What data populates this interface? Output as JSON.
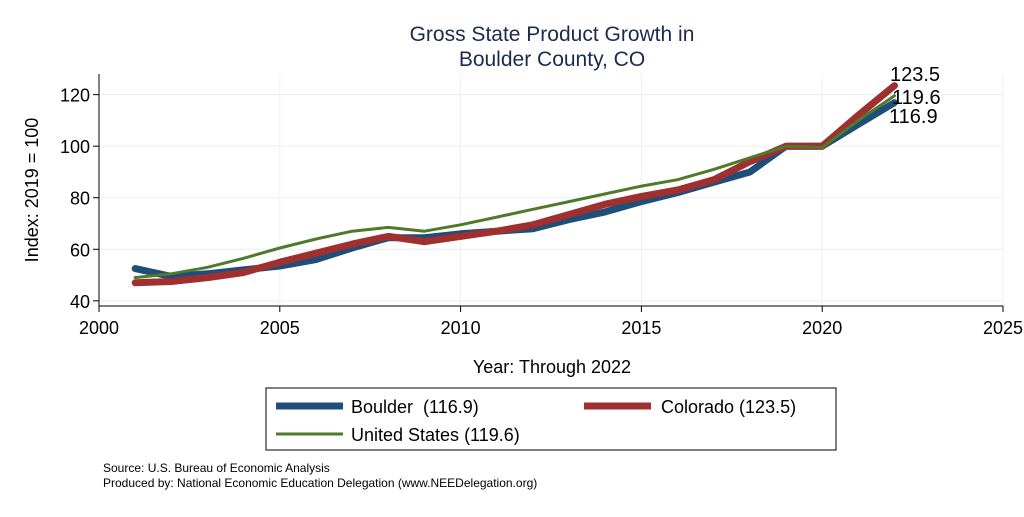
{
  "chart_data": {
    "type": "line",
    "title_lines": [
      "Gross State Product Growth in",
      "Boulder County, CO"
    ],
    "xlabel": "Year: Through 2022",
    "ylabel": "Index: 2019 = 100",
    "xlim": [
      2000,
      2025
    ],
    "ylim": [
      38,
      128
    ],
    "xticks": [
      2000,
      2005,
      2010,
      2015,
      2020,
      2025
    ],
    "yticks": [
      40,
      60,
      80,
      100,
      120
    ],
    "grid": true,
    "x": [
      2001,
      2002,
      2003,
      2004,
      2005,
      2006,
      2007,
      2008,
      2009,
      2010,
      2011,
      2012,
      2013,
      2014,
      2015,
      2016,
      2017,
      2018,
      2019,
      2020,
      2021,
      2022
    ],
    "series": [
      {
        "name": "United States",
        "legend_label": "United States (119.6)",
        "color": "#4f7a2a",
        "values": [
          49,
          50.5,
          53,
          56.5,
          60.5,
          64,
          67,
          68.5,
          67,
          69.5,
          72.5,
          75.5,
          78.5,
          81.5,
          84.5,
          87,
          91,
          95.5,
          100,
          99.5,
          110,
          119.6
        ],
        "end_label": "119.6"
      },
      {
        "name": "Boulder",
        "legend_label": "Boulder  (116.9)",
        "color": "#1f4e79",
        "values": [
          52.5,
          49.5,
          50.5,
          52,
          53.5,
          56,
          60.5,
          64.5,
          64.5,
          66,
          67,
          68,
          71.5,
          74.5,
          78.5,
          82,
          86,
          90,
          100,
          100,
          108.5,
          116.9
        ],
        "end_label": "116.9"
      },
      {
        "name": "Colorado",
        "legend_label": "Colorado (123.5)",
        "color": "#a03030",
        "values": [
          47,
          47.5,
          49,
          51,
          55,
          58.5,
          62,
          65,
          63,
          65,
          67,
          69.5,
          73.5,
          77.5,
          80.5,
          83,
          87,
          94,
          100,
          100,
          112,
          123.5
        ],
        "end_label": "123.5"
      }
    ],
    "legend": {
      "placement": "bottom",
      "order": [
        "Boulder",
        "Colorado",
        "United States"
      ]
    },
    "notes": [
      "Source: U.S. Bureau of Economic Analysis",
      "Produced by: National Economic Education Delegation (www.NEEDelegation.org)"
    ]
  }
}
